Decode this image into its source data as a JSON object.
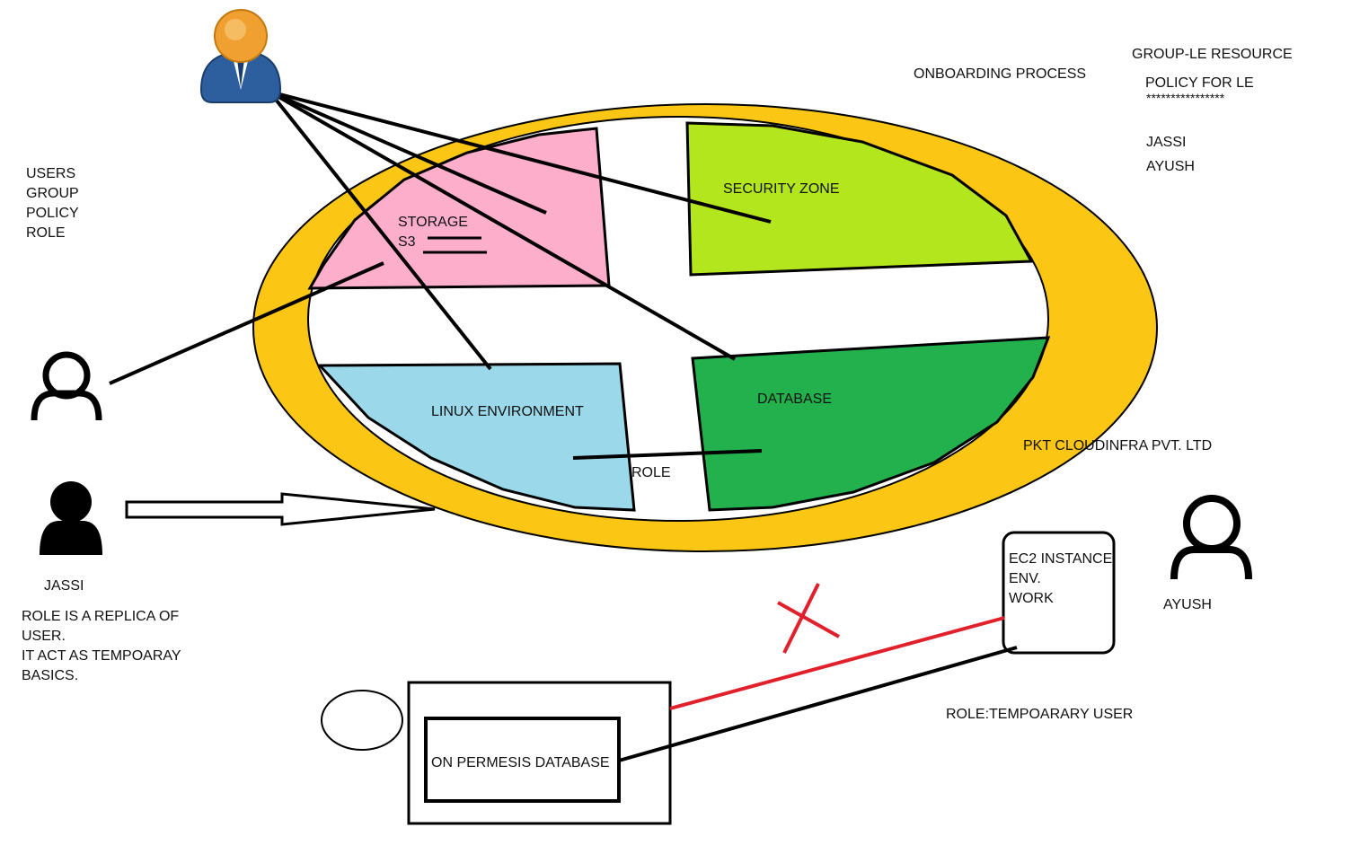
{
  "diagram": {
    "top_right_notes": {
      "onboarding": "ONBOARDING PROCESS",
      "group_resource": "GROUP-LE RESOURCE",
      "policy": "POLICY FOR LE",
      "stars": "****************",
      "name1": "JASSI",
      "name2": "AYUSH"
    },
    "left_list": [
      "USERS",
      "GROUP",
      "POLICY",
      "ROLE"
    ],
    "zones": {
      "storage_label": "STORAGE",
      "s3_label": "S3",
      "security_label": "SECURITY ZONE",
      "linux_label": "LINUX ENVIRONMENT",
      "database_label": "DATABASE",
      "role_label": "ROLE"
    },
    "company": "PKT CLOUDINFRA PVT. LTD",
    "jassi_label": "JASSI",
    "role_note": [
      "ROLE IS A REPLICA OF",
      "USER.",
      "IT ACT AS TEMPOARAY",
      "BASICS."
    ],
    "ec2_box": [
      "EC2 INSTANCE",
      "ENV.",
      "WORK"
    ],
    "ayush_label": "AYUSH",
    "role_temp": "ROLE:TEMPOARARY USER",
    "on_prem_db": "ON PERMESIS DATABASE",
    "colors": {
      "ring": "#fbc614",
      "storage": "#fdaecb",
      "security": "#b4e61e",
      "linux": "#9ad8ea",
      "database": "#22b14c",
      "red_line": "#e0202a",
      "avatar_blue": "#2d5f9e",
      "avatar_orange": "#f0a030"
    },
    "icons": [
      "business-user-icon",
      "person-outline-icon",
      "person-filled-icon",
      "person-outline-icon",
      "hollow-arrow-icon",
      "red-cross-icon"
    ]
  }
}
